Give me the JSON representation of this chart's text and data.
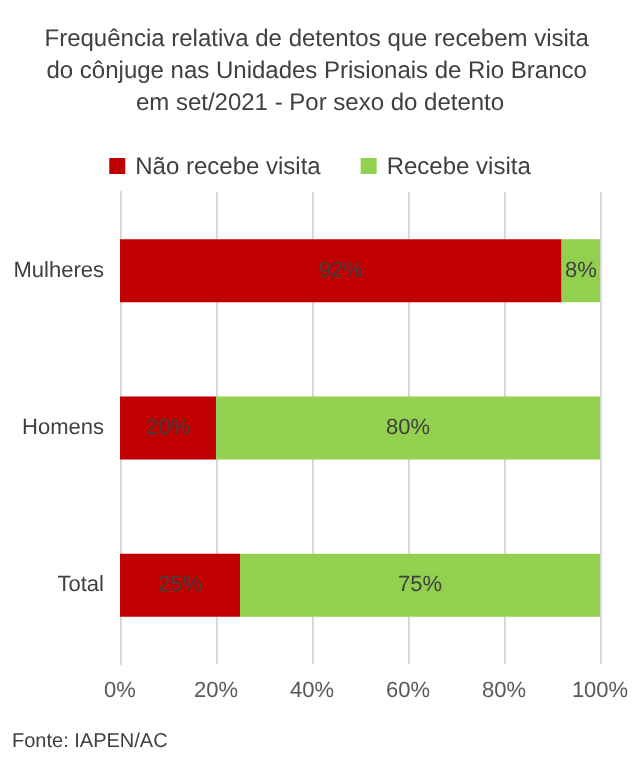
{
  "chart_data": {
    "type": "bar",
    "orientation": "horizontal",
    "stacked": true,
    "title": "Frequência relativa de detentos que recebem visita do cônjuge nas Unidades Prisionais de Rio Branco em set/2021 - Por sexo do detento",
    "categories": [
      "Mulheres",
      "Homens",
      "Total"
    ],
    "series": [
      {
        "name": "Não recebe visita",
        "color": "#c00000",
        "values": [
          92,
          20,
          25
        ],
        "value_labels": [
          "92%",
          "20%",
          "25%"
        ]
      },
      {
        "name": "Recebe visita",
        "color": "#92d050",
        "values": [
          8,
          80,
          75
        ],
        "value_labels": [
          "8%",
          "80%",
          "75%"
        ]
      }
    ],
    "xlim": [
      0,
      100
    ],
    "xticks": [
      {
        "value": 0,
        "label": "0%"
      },
      {
        "value": 20,
        "label": "20%"
      },
      {
        "value": 40,
        "label": "40%"
      },
      {
        "value": 60,
        "label": "60%"
      },
      {
        "value": 80,
        "label": "80%"
      },
      {
        "value": 100,
        "label": "100%"
      }
    ],
    "grid": "x",
    "legend": "top",
    "annotations": [
      "Fonte: IAPEN/AC"
    ]
  }
}
